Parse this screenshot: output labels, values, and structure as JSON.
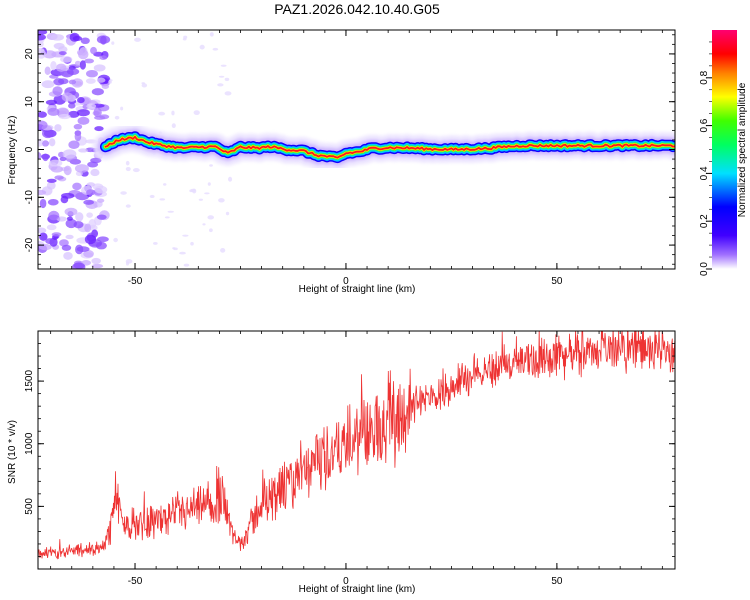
{
  "title": "PAZ1.2026.042.10.40.G05",
  "chart_data": [
    {
      "type": "heatmap",
      "xlabel": "Height of straight line (km)",
      "ylabel": "Frequency (Hz)",
      "xlim": [
        -73,
        78
      ],
      "ylim": [
        -25,
        25
      ],
      "xticks": [
        -50,
        0,
        50
      ],
      "yticks": [
        -20,
        -10,
        0,
        10,
        20
      ],
      "colorbar": {
        "label": "Normalized spectral amplitude",
        "range": [
          0,
          1
        ],
        "ticks": [
          0.0,
          0.2,
          0.4,
          0.6,
          0.8
        ]
      },
      "ridge": {
        "x": [
          -57,
          -54,
          -50,
          -47,
          -43,
          -39,
          -35,
          -31,
          -28,
          -25,
          -21,
          -18,
          -14,
          -10,
          -7,
          -4,
          -2,
          0,
          3,
          6,
          10,
          15,
          20,
          26,
          33,
          38,
          42,
          50,
          60,
          70,
          78
        ],
        "y": [
          0.5,
          2.0,
          2.5,
          1.5,
          0.8,
          0.3,
          0.5,
          0.6,
          -0.8,
          0.5,
          0.3,
          0.6,
          0.0,
          -0.3,
          -1.2,
          -1.5,
          -1.8,
          -0.8,
          -0.5,
          0.2,
          0.4,
          0.3,
          0.1,
          0.0,
          0.2,
          0.6,
          0.8,
          0.8,
          0.8,
          0.8,
          0.8
        ]
      },
      "noise_region_x": [
        -73,
        -57
      ]
    },
    {
      "type": "line",
      "xlabel": "Height of straight line (km)",
      "ylabel": "SNR (10 * v/v)",
      "xlim": [
        -73,
        78
      ],
      "ylim": [
        0,
        1900
      ],
      "xticks": [
        -50,
        0,
        50
      ],
      "yticks": [
        500,
        1000,
        1500
      ],
      "series": [
        {
          "name": "SNR",
          "color": "#ee3333",
          "x": [
            -73,
            -70,
            -66,
            -62,
            -58,
            -56,
            -54.5,
            -53,
            -50,
            -46,
            -42,
            -38,
            -34,
            -31,
            -29,
            -27,
            -25,
            -20,
            -15,
            -10,
            -5,
            0,
            5,
            10,
            15,
            20,
            25,
            30,
            35,
            40,
            45,
            50,
            55,
            60,
            65,
            70,
            75,
            78
          ],
          "y": [
            110,
            130,
            140,
            150,
            170,
            300,
            610,
            340,
            360,
            390,
            400,
            450,
            480,
            500,
            630,
            260,
            200,
            520,
            620,
            760,
            880,
            980,
            1070,
            1190,
            1290,
            1370,
            1460,
            1550,
            1600,
            1640,
            1680,
            1700,
            1720,
            1740,
            1760,
            1760,
            1720,
            1700
          ]
        }
      ]
    }
  ]
}
